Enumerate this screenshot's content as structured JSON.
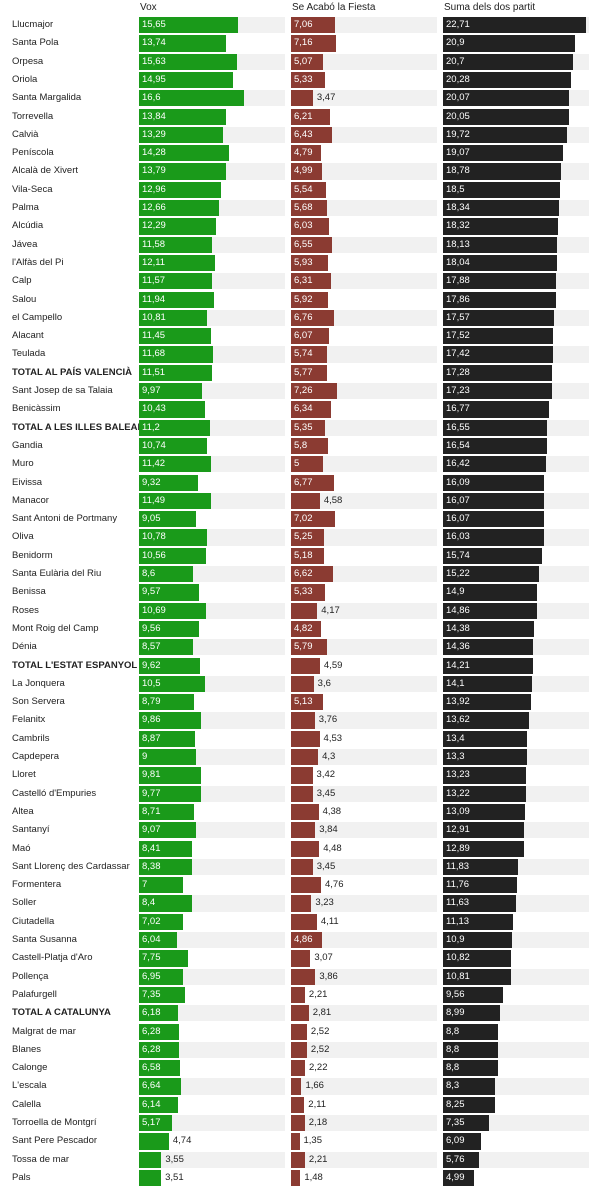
{
  "chart_data": {
    "type": "bar",
    "columns": [
      "Vox",
      "Se Acabó la Fiesta",
      "Suma dels dos partit"
    ],
    "colors": {
      "vox": "#1a9a1a",
      "salf": "#8b3b32",
      "sum": "#222222",
      "track": "#f1f1f1"
    },
    "categories": [
      "Llucmajor",
      "Santa Pola",
      "Orpesa",
      "Oriola",
      "Santa Margalida",
      "Torrevella",
      "Calvià",
      "Peníscola",
      "Alcalà de Xivert",
      "Vila-Seca",
      "Palma",
      "Alcúdia",
      "Jávea",
      "l'Alfàs del Pi",
      "Calp",
      "Salou",
      "el Campello",
      "Alacant",
      "Teulada",
      "TOTAL AL PAÍS VALENCIÀ",
      "Sant Josep de sa Talaia",
      "Benicàssim",
      "TOTAL A LES ILLES BALEARS",
      "Gandia",
      "Muro",
      "Eivissa",
      "Manacor",
      "Sant Antoni de Portmany",
      "Oliva",
      "Benidorm",
      "Santa Eulària del Riu",
      "Benissa",
      "Roses",
      "Mont Roig del Camp",
      "Dénia",
      "TOTAL L'ESTAT ESPANYOL",
      "La Jonquera",
      "Son Servera",
      "Felanitx",
      "Cambrils",
      "Capdepera",
      "Lloret",
      "Castelló d'Empuries",
      "Altea",
      "Santanyí",
      "Maó",
      "Sant Llorenç des Cardassar",
      "Formentera",
      "Soller",
      "Ciutadella",
      "Santa Susanna",
      "Castell-Platja d'Aro",
      "Pollença",
      "Palafurgell",
      "TOTAL A CATALUNYA",
      "Malgrat de mar",
      "Blanes",
      "Calonge",
      "L'escala",
      "Calella",
      "Torroella de Montgrí",
      "Sant Pere Pescador",
      "Tossa de mar",
      "Pals"
    ],
    "bold_rows": [
      19,
      22,
      35,
      54
    ],
    "series": [
      {
        "name": "Vox",
        "labels": [
          "15,65",
          "13,74",
          "15,63",
          "14,95",
          "16,6",
          "13,84",
          "13,29",
          "14,28",
          "13,79",
          "12,96",
          "12,66",
          "12,29",
          "11,58",
          "12,11",
          "11,57",
          "11,94",
          "10,81",
          "11,45",
          "11,68",
          "11,51",
          "9,97",
          "10,43",
          "11,2",
          "10,74",
          "11,42",
          "9,32",
          "11,49",
          "9,05",
          "10,78",
          "10,56",
          "8,6",
          "9,57",
          "10,69",
          "9,56",
          "8,57",
          "9,62",
          "10,5",
          "8,79",
          "9,86",
          "8,87",
          "9",
          "9,81",
          "9,77",
          "8,71",
          "9,07",
          "8,41",
          "8,38",
          "7",
          "8,4",
          "7,02",
          "6,04",
          "7,75",
          "6,95",
          "7,35",
          "6,18",
          "6,28",
          "6,28",
          "6,58",
          "6,64",
          "6,14",
          "5,17",
          "4,74",
          "3,55",
          "3,51"
        ]
      },
      {
        "name": "Se Acabó la Fiesta",
        "labels": [
          "7,06",
          "7,16",
          "5,07",
          "5,33",
          "3,47",
          "6,21",
          "6,43",
          "4,79",
          "4,99",
          "5,54",
          "5,68",
          "6,03",
          "6,55",
          "5,93",
          "6,31",
          "5,92",
          "6,76",
          "6,07",
          "5,74",
          "5,77",
          "7,26",
          "6,34",
          "5,35",
          "5,8",
          "5",
          "6,77",
          "4,58",
          "7,02",
          "5,25",
          "5,18",
          "6,62",
          "5,33",
          "4,17",
          "4,82",
          "5,79",
          "4,59",
          "3,6",
          "5,13",
          "3,76",
          "4,53",
          "4,3",
          "3,42",
          "3,45",
          "4,38",
          "3,84",
          "4,48",
          "3,45",
          "4,76",
          "3,23",
          "4,11",
          "4,86",
          "3,07",
          "3,86",
          "2,21",
          "2,81",
          "2,52",
          "2,52",
          "2,22",
          "1,66",
          "2,11",
          "2,18",
          "1,35",
          "2,21",
          "1,48"
        ]
      },
      {
        "name": "Suma dels dos partit",
        "labels": [
          "22,71",
          "20,9",
          "20,7",
          "20,28",
          "20,07",
          "20,05",
          "19,72",
          "19,07",
          "18,78",
          "18,5",
          "18,34",
          "18,32",
          "18,13",
          "18,04",
          "17,88",
          "17,86",
          "17,57",
          "17,52",
          "17,42",
          "17,28",
          "17,23",
          "16,77",
          "16,55",
          "16,54",
          "16,42",
          "16,09",
          "16,07",
          "16,07",
          "16,03",
          "15,74",
          "15,22",
          "14,9",
          "14,86",
          "14,38",
          "14,36",
          "14,21",
          "14,1",
          "13,92",
          "13,62",
          "13,4",
          "13,3",
          "13,23",
          "13,22",
          "13,09",
          "12,91",
          "12,89",
          "11,83",
          "11,76",
          "11,63",
          "11,13",
          "10,9",
          "10,82",
          "10,81",
          "9,56",
          "8,99",
          "8,8",
          "8,8",
          "8,8",
          "8,3",
          "8,25",
          "7,35",
          "6,09",
          "5,76",
          "4,99"
        ]
      }
    ]
  }
}
